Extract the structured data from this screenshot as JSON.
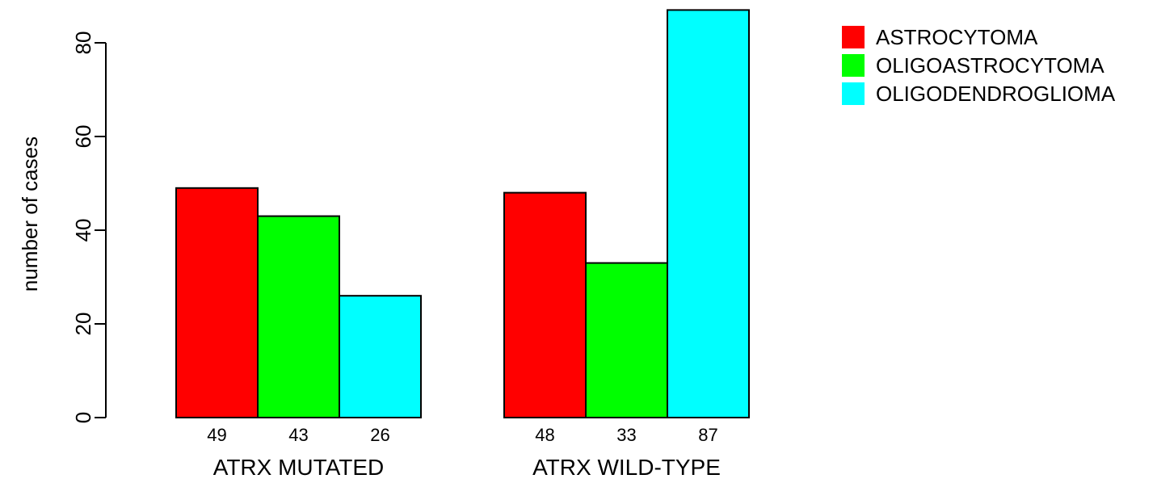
{
  "chart_data": {
    "type": "bar",
    "title": "",
    "xlabel": "",
    "ylabel": "number of cases",
    "ylim": [
      0,
      87
    ],
    "yticks": [
      0,
      20,
      40,
      60,
      80
    ],
    "categories": [
      "ATRX MUTATED",
      "ATRX WILD-TYPE"
    ],
    "series": [
      {
        "name": "ASTROCYTOMA",
        "color": "#ff0000",
        "values": [
          49,
          48
        ]
      },
      {
        "name": "OLIGOASTROCYTOMA",
        "color": "#00ff00",
        "values": [
          43,
          33
        ]
      },
      {
        "name": "OLIGODENDROGLIOMA",
        "color": "#00ffff",
        "values": [
          26,
          87
        ]
      }
    ],
    "data_labels": [
      [
        "49",
        "43",
        "26"
      ],
      [
        "48",
        "33",
        "87"
      ]
    ],
    "legend_position": "top-right",
    "grid": false
  }
}
